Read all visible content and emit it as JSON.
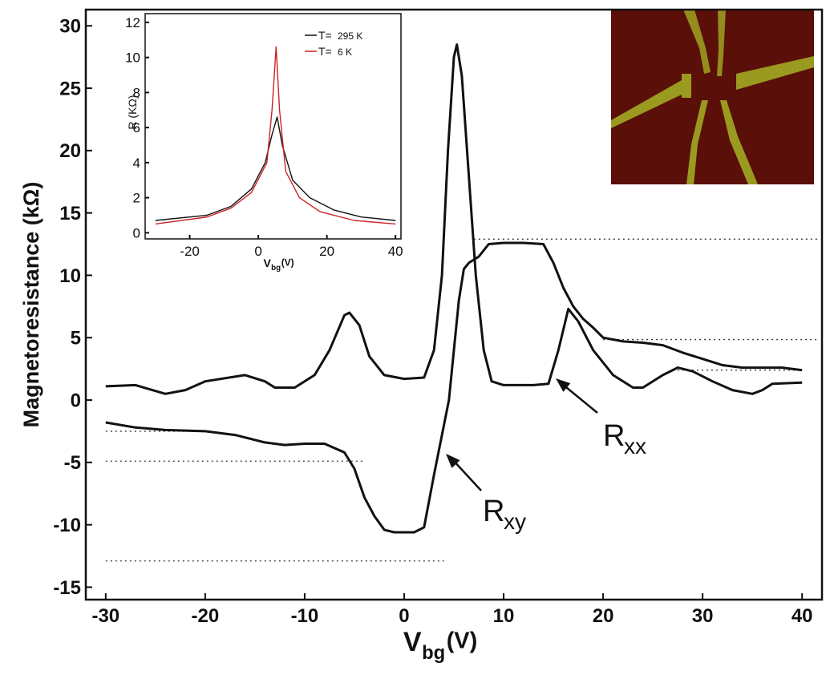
{
  "chart_data": [
    {
      "type": "line",
      "y_label": "Magnetoresistance (kΩ)",
      "x_label": {
        "main": "V",
        "sub": "bg",
        "unit": "(V)"
      },
      "xlim": [
        -32,
        42
      ],
      "ylim": [
        -16,
        31.3
      ],
      "xticks": [
        -30,
        -20,
        -10,
        0,
        10,
        20,
        30,
        40
      ],
      "yticks": [
        -15,
        -10,
        -5,
        0,
        5,
        10,
        15,
        20,
        25,
        30
      ],
      "series": [
        {
          "name": "R",
          "subscript": "xx",
          "color": "#111111",
          "x": [
            -30,
            -27,
            -24,
            -22,
            -20,
            -16,
            -14,
            -13,
            -11,
            -9,
            -7.5,
            -6,
            -5.5,
            -4.5,
            -3.5,
            -2,
            0,
            2,
            3,
            3.8,
            4.4,
            5,
            5.3,
            5.8,
            6.5,
            7.2,
            8,
            8.8,
            10,
            13,
            14.5,
            15.5,
            16.5,
            17.5,
            19,
            21,
            23,
            24,
            26,
            27.5,
            29,
            31,
            33,
            35,
            36,
            37,
            40
          ],
          "values": [
            1.1,
            1.2,
            0.5,
            0.8,
            1.5,
            2.0,
            1.5,
            1.0,
            1.0,
            2.0,
            4.0,
            6.8,
            7.0,
            6.0,
            3.5,
            2.0,
            1.7,
            1.8,
            4,
            10,
            20,
            27.5,
            28.5,
            26,
            18,
            10,
            4,
            1.5,
            1.2,
            1.2,
            1.3,
            4,
            7.3,
            6.3,
            4.0,
            2.0,
            1.0,
            1.0,
            2.0,
            2.6,
            2.3,
            1.5,
            0.8,
            0.5,
            0.8,
            1.3,
            1.4
          ]
        },
        {
          "name": "R",
          "subscript": "xy",
          "color": "#111111",
          "x": [
            -30,
            -27,
            -24,
            -20,
            -17,
            -14,
            -12,
            -10,
            -8,
            -6,
            -5,
            -4,
            -3,
            -2,
            -1,
            0,
            1,
            2,
            3,
            4,
            4.5,
            5,
            5.5,
            6,
            6.5,
            7.5,
            8.5,
            10,
            12,
            14,
            15,
            16,
            17,
            18,
            19,
            20,
            22,
            24,
            26,
            28,
            30,
            32,
            34,
            36,
            38,
            40
          ],
          "values": [
            -1.8,
            -2.2,
            -2.4,
            -2.5,
            -2.8,
            -3.4,
            -3.6,
            -3.5,
            -3.5,
            -4.2,
            -5.5,
            -7.8,
            -9.3,
            -10.4,
            -10.6,
            -10.6,
            -10.6,
            -10.2,
            -6,
            -2,
            0,
            4,
            8,
            10.5,
            11.0,
            11.5,
            12.5,
            12.6,
            12.6,
            12.5,
            11,
            9,
            7.5,
            6.5,
            5.8,
            5.0,
            4.7,
            4.6,
            4.4,
            3.8,
            3.3,
            2.8,
            2.6,
            2.6,
            2.6,
            2.4
          ]
        }
      ],
      "reference_lines": [
        {
          "y": 12.9,
          "x": [
            7,
            41.5
          ]
        },
        {
          "y": 4.85,
          "x": [
            20,
            41.5
          ]
        },
        {
          "y": 2.4,
          "x": [
            27,
            40
          ]
        },
        {
          "y": -2.5,
          "x": [
            -30,
            -22
          ]
        },
        {
          "y": -4.9,
          "x": [
            -30,
            -4
          ]
        },
        {
          "y": -12.9,
          "x": [
            -30,
            4
          ]
        }
      ]
    },
    {
      "type": "line",
      "y_label": "R (KΩ)",
      "x_label": {
        "main": "V",
        "sub": "bg",
        "unit": "(V)"
      },
      "xlim": [
        -33,
        41.6
      ],
      "ylim": [
        -0.35,
        12.5
      ],
      "xticks": [
        -20,
        0,
        20,
        40
      ],
      "yticks": [
        0,
        2,
        4,
        6,
        8,
        10,
        12
      ],
      "series": [
        {
          "name": "T=",
          "temp": "295 K",
          "color": "#111111",
          "x": [
            -30,
            -15,
            -8,
            -2,
            2,
            4,
            5.5,
            7,
            10,
            15,
            22,
            30,
            40
          ],
          "values": [
            0.7,
            1.0,
            1.5,
            2.5,
            4,
            5.6,
            6.6,
            5,
            3,
            2,
            1.3,
            0.9,
            0.7
          ]
        },
        {
          "name": "T=",
          "temp": "6 K",
          "color": "#cc2222",
          "x": [
            -30,
            -15,
            -8,
            -2,
            2.5,
            4,
            5.2,
            6.2,
            8,
            12,
            18,
            28,
            40
          ],
          "values": [
            0.5,
            0.9,
            1.4,
            2.3,
            4,
            7,
            10.6,
            7,
            3.5,
            2,
            1.2,
            0.7,
            0.5
          ]
        }
      ]
    }
  ]
}
